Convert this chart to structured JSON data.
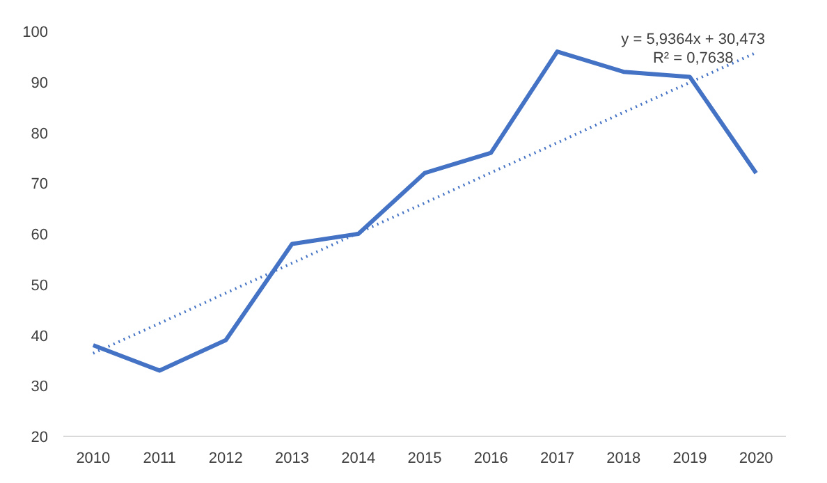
{
  "chart_data": {
    "type": "line",
    "categories": [
      "2010",
      "2011",
      "2012",
      "2013",
      "2014",
      "2015",
      "2016",
      "2017",
      "2018",
      "2019",
      "2020"
    ],
    "series": [
      {
        "color": "#4472c4",
        "values": [
          38,
          33,
          39,
          58,
          60,
          72,
          76,
          96,
          92,
          91,
          72
        ],
        "line_style": "solid"
      },
      {
        "type": "line",
        "color": "#4472c4",
        "values": [
          36.4,
          42.3,
          48.3,
          54.2,
          60.2,
          66.1,
          72.1,
          78.0,
          84.0,
          89.9,
          95.8
        ],
        "line_style": "dotted"
      }
    ],
    "annotations": [
      "y = 5,9364x + 30,473",
      "R² = 0,7638"
    ],
    "ylim": [
      20,
      100
    ],
    "yticks": [
      20,
      30,
      40,
      50,
      60,
      70,
      80,
      90,
      100
    ],
    "grid": false,
    "marker": "none"
  }
}
